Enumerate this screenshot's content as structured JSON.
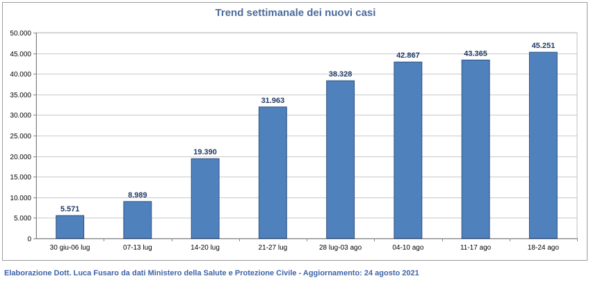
{
  "chart_data": {
    "type": "bar",
    "title": "Trend settimanale dei nuovi casi",
    "categories": [
      "30 giu-06 lug",
      "07-13 lug",
      "14-20 lug",
      "21-27 lug",
      "28 lug-03 ago",
      "04-10 ago",
      "11-17 ago",
      "18-24 ago"
    ],
    "values": [
      5571,
      8989,
      19390,
      31963,
      38328,
      42867,
      43365,
      45251
    ],
    "value_labels": [
      "5.571",
      "8.989",
      "19.390",
      "31.963",
      "38.328",
      "42.867",
      "43.365",
      "45.251"
    ],
    "yticks": [
      0,
      5000,
      10000,
      15000,
      20000,
      25000,
      30000,
      35000,
      40000,
      45000,
      50000
    ],
    "ytick_labels": [
      "0",
      "5.000",
      "10.000",
      "15.000",
      "20.000",
      "25.000",
      "30.000",
      "35.000",
      "40.000",
      "45.000",
      "50.000"
    ],
    "ylim": [
      0,
      50000
    ],
    "xlabel": "",
    "ylabel": "",
    "grid": true,
    "bar_color": "#4f81bd",
    "bar_edge_color": "#2f4f7f"
  },
  "footer": "Elaborazione Dott. Luca Fusaro da dati Ministero della Salute e Protezione Civile - Aggiornamento: 24 agosto 2021"
}
